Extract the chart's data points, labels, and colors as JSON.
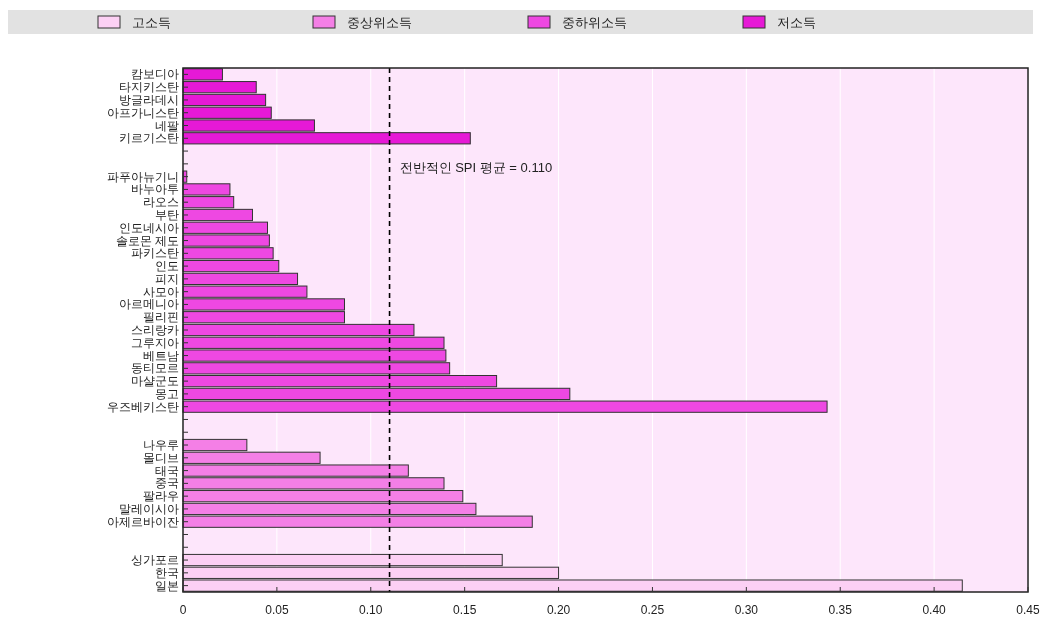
{
  "chart_data": {
    "type": "bar",
    "orientation": "horizontal",
    "categories": [
      "캄보디아",
      "타지키스탄",
      "방글라데시",
      "아프가니스탄",
      "네팔",
      "키르기스탄",
      null,
      null,
      "파푸아뉴기니",
      "바누아투",
      "라오스",
      "부탄",
      "인도네시아",
      "솔로몬 제도",
      "파키스탄",
      "인도",
      "피지",
      "사모아",
      "아르메니아",
      "필리핀",
      "스리랑카",
      "그루지아",
      "베트남",
      "동티모르",
      "마샬군도",
      "몽고",
      "우즈베키스탄",
      null,
      null,
      "나우루",
      "몰디브",
      "태국",
      "중국",
      "팔라우",
      "말레이시아",
      "아제르바이잔",
      null,
      null,
      "싱가포르",
      "한국",
      "일본"
    ],
    "series": [
      {
        "name": "고소득",
        "color": "#fcd0f4",
        "values": [
          null,
          null,
          null,
          null,
          null,
          null,
          null,
          null,
          null,
          null,
          null,
          null,
          null,
          null,
          null,
          null,
          null,
          null,
          null,
          null,
          null,
          null,
          null,
          null,
          null,
          null,
          null,
          null,
          null,
          null,
          null,
          null,
          null,
          null,
          null,
          null,
          null,
          null,
          0.17,
          0.2,
          0.415
        ]
      },
      {
        "name": "중상위소득",
        "color": "#f47fe6",
        "values": [
          null,
          null,
          null,
          null,
          null,
          null,
          null,
          null,
          null,
          null,
          null,
          null,
          null,
          null,
          null,
          null,
          null,
          null,
          null,
          null,
          null,
          null,
          null,
          null,
          null,
          null,
          null,
          null,
          null,
          0.034,
          0.073,
          0.12,
          0.139,
          0.149,
          0.156,
          0.186,
          null,
          null,
          null,
          null,
          null
        ]
      },
      {
        "name": "중하위소득",
        "color": "#ee48e2",
        "values": [
          null,
          null,
          null,
          null,
          null,
          null,
          null,
          null,
          0.002,
          0.025,
          0.027,
          0.037,
          0.045,
          0.046,
          0.048,
          0.051,
          0.061,
          0.066,
          0.086,
          0.086,
          0.123,
          0.139,
          0.14,
          0.142,
          0.167,
          0.206,
          0.343,
          null,
          null,
          null,
          null,
          null,
          null,
          null,
          null,
          null,
          null,
          null,
          null,
          null,
          null
        ]
      },
      {
        "name": "저소득",
        "color": "#e619d6",
        "values": [
          0.021,
          0.039,
          0.044,
          0.047,
          0.07,
          0.153,
          null,
          null,
          null,
          null,
          null,
          null,
          null,
          null,
          null,
          null,
          null,
          null,
          null,
          null,
          null,
          null,
          null,
          null,
          null,
          null,
          null,
          null,
          null,
          null,
          null,
          null,
          null,
          null,
          null,
          null,
          null,
          null,
          null,
          null,
          null
        ]
      }
    ],
    "xlim": [
      0,
      0.45
    ],
    "xticks": [
      0,
      0.05,
      {
        "value": 0.1,
        "label": "0.10"
      },
      0.15,
      {
        "value": 0.2,
        "label": "0.20"
      },
      0.25,
      {
        "value": 0.3,
        "label": "0.30"
      },
      0.35,
      {
        "value": 0.4,
        "label": "0.40"
      },
      0.45
    ],
    "ref_lines": [
      {
        "axis": "x",
        "value": 0.11,
        "label": "전반적인 SPI 평균 = 0.110",
        "line_style": "dashed",
        "color": "#000000"
      }
    ],
    "grid": "x",
    "legend": "top"
  }
}
